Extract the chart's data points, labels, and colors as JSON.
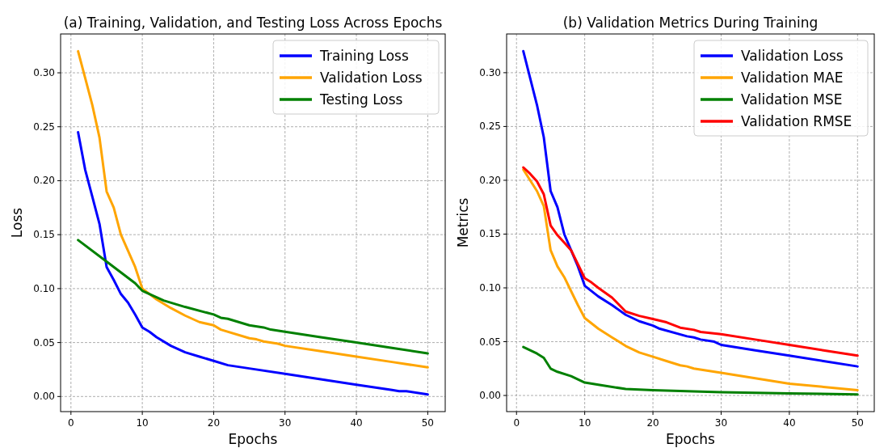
{
  "chart_data": [
    {
      "type": "line",
      "title": "(a) Training, Validation, and Testing Loss Across Epochs",
      "xlabel": "Epochs",
      "ylabel": "Loss",
      "xlim": [
        -1.45,
        52.45
      ],
      "ylim": [
        -0.014,
        0.336
      ],
      "xticks": [
        0,
        10,
        20,
        30,
        40,
        50
      ],
      "yticks": [
        {
          "value": 0,
          "label": "0.00"
        },
        {
          "value": 0.05,
          "label": "0.05"
        },
        {
          "value": 0.1,
          "label": "0.10"
        },
        {
          "value": 0.15,
          "label": "0.15"
        },
        {
          "value": 0.2,
          "label": "0.20"
        },
        {
          "value": 0.25,
          "label": "0.25"
        },
        {
          "value": 0.3,
          "label": "0.30"
        }
      ],
      "grid": true,
      "legend": "top right",
      "line_style": "solid",
      "marker": "none",
      "series": [
        {
          "name": "Training Loss",
          "color": "#0000ff",
          "x": [
            1,
            2,
            3,
            4,
            5,
            6,
            7,
            8,
            9,
            10,
            11,
            12,
            14,
            16,
            18,
            20,
            22,
            25,
            30,
            35,
            40,
            45,
            46,
            47,
            50
          ],
          "values": [
            0.245,
            0.21,
            0.185,
            0.16,
            0.12,
            0.108,
            0.095,
            0.087,
            0.076,
            0.064,
            0.06,
            0.055,
            0.047,
            0.041,
            0.037,
            0.033,
            0.029,
            0.026,
            0.021,
            0.016,
            0.011,
            0.006,
            0.005,
            0.005,
            0.002
          ]
        },
        {
          "name": "Validation Loss",
          "color": "#ffa500",
          "x": [
            1,
            2,
            3,
            4,
            5,
            6,
            7,
            8,
            9,
            10,
            12,
            14,
            16,
            18,
            20,
            21,
            25,
            26,
            27,
            29,
            30,
            35,
            40,
            45,
            50
          ],
          "values": [
            0.32,
            0.295,
            0.27,
            0.24,
            0.19,
            0.175,
            0.15,
            0.135,
            0.12,
            0.1,
            0.09,
            0.082,
            0.075,
            0.069,
            0.066,
            0.062,
            0.054,
            0.053,
            0.051,
            0.049,
            0.047,
            0.042,
            0.037,
            0.032,
            0.027
          ]
        },
        {
          "name": "Testing Loss",
          "color": "#008000",
          "x": [
            1,
            5,
            9,
            10,
            13,
            16,
            20,
            21,
            22,
            25,
            27,
            28,
            30,
            35,
            40,
            45,
            50
          ],
          "values": [
            0.145,
            0.125,
            0.105,
            0.098,
            0.089,
            0.083,
            0.076,
            0.073,
            0.072,
            0.066,
            0.064,
            0.062,
            0.06,
            0.055,
            0.05,
            0.045,
            0.04
          ]
        }
      ]
    },
    {
      "type": "line",
      "title": "(b) Validation Metrics During Training",
      "xlabel": "Epochs",
      "ylabel": "Metrics",
      "xlim": [
        -1.45,
        52.45
      ],
      "ylim": [
        -0.015,
        0.336
      ],
      "xticks": [
        0,
        10,
        20,
        30,
        40,
        50
      ],
      "yticks": [
        {
          "value": 0,
          "label": "0.00"
        },
        {
          "value": 0.05,
          "label": "0.05"
        },
        {
          "value": 0.1,
          "label": "0.10"
        },
        {
          "value": 0.15,
          "label": "0.15"
        },
        {
          "value": 0.2,
          "label": "0.20"
        },
        {
          "value": 0.25,
          "label": "0.25"
        },
        {
          "value": 0.3,
          "label": "0.30"
        }
      ],
      "grid": true,
      "legend": "top right",
      "line_style": "solid",
      "marker": "none",
      "series": [
        {
          "name": "Validation Loss",
          "color": "#0000ff",
          "x": [
            1,
            3,
            4,
            5,
            6,
            7,
            8,
            9,
            10,
            12,
            14,
            16,
            18,
            20,
            21,
            25,
            26,
            27,
            29,
            30,
            35,
            40,
            45,
            50
          ],
          "values": [
            0.32,
            0.27,
            0.24,
            0.19,
            0.175,
            0.15,
            0.135,
            0.12,
            0.102,
            0.092,
            0.084,
            0.075,
            0.069,
            0.065,
            0.062,
            0.055,
            0.054,
            0.052,
            0.05,
            0.047,
            0.042,
            0.037,
            0.032,
            0.027
          ]
        },
        {
          "name": "Validation MAE",
          "color": "#ffa500",
          "x": [
            1,
            2,
            3,
            4,
            5,
            6,
            7,
            8,
            9,
            10,
            12,
            14,
            16,
            18,
            20,
            22,
            24,
            25,
            26,
            30,
            35,
            40,
            45,
            50
          ],
          "values": [
            0.21,
            0.2,
            0.19,
            0.176,
            0.135,
            0.12,
            0.11,
            0.097,
            0.084,
            0.072,
            0.062,
            0.054,
            0.046,
            0.04,
            0.036,
            0.032,
            0.028,
            0.027,
            0.025,
            0.021,
            0.016,
            0.011,
            0.008,
            0.005
          ]
        },
        {
          "name": "Validation MSE",
          "color": "#008000",
          "x": [
            1,
            3,
            4,
            5,
            6,
            8,
            10,
            12,
            16,
            20,
            30,
            40,
            50
          ],
          "values": [
            0.045,
            0.039,
            0.035,
            0.025,
            0.022,
            0.018,
            0.012,
            0.01,
            0.006,
            0.005,
            0.003,
            0.002,
            0.001
          ]
        },
        {
          "name": "Validation RMSE",
          "color": "#ff0000",
          "x": [
            1,
            2,
            3,
            4,
            5,
            6,
            7,
            8,
            9,
            10,
            11,
            12,
            14,
            16,
            18,
            20,
            22,
            24,
            26,
            27,
            30,
            35,
            40,
            45,
            50
          ],
          "values": [
            0.212,
            0.206,
            0.199,
            0.187,
            0.158,
            0.149,
            0.142,
            0.135,
            0.122,
            0.109,
            0.105,
            0.1,
            0.091,
            0.078,
            0.074,
            0.071,
            0.068,
            0.063,
            0.061,
            0.059,
            0.057,
            0.052,
            0.047,
            0.042,
            0.037
          ]
        }
      ]
    }
  ]
}
